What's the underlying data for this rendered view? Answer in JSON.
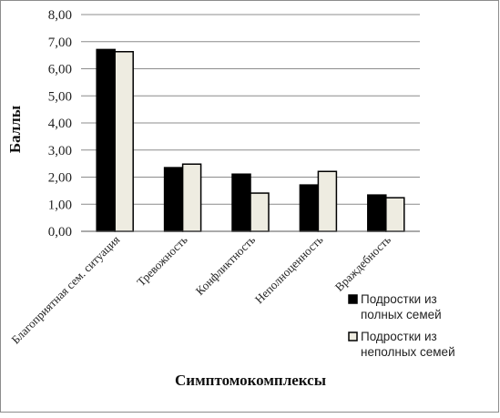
{
  "chart_data": {
    "type": "bar",
    "categories": [
      "Благоприятная сем. ситуация",
      "Тревожность",
      "Конфликтность",
      "Неполноценность",
      "Враждебность"
    ],
    "series": [
      {
        "name": "Подростки из полных семей",
        "color": "#000000",
        "values": [
          6.71,
          2.35,
          2.11,
          1.71,
          1.34
        ]
      },
      {
        "name": "Подростки из неполных семей",
        "color": "#eeece1",
        "values": [
          6.63,
          2.48,
          1.41,
          2.21,
          1.24
        ]
      }
    ],
    "title": "",
    "xlabel": "Симптомокомплексы",
    "ylabel": "Баллы",
    "ylim": [
      0,
      8
    ],
    "yticks": [
      "0,00",
      "1,00",
      "2,00",
      "3,00",
      "4,00",
      "5,00",
      "6,00",
      "7,00",
      "8,00"
    ],
    "grid": true,
    "legend_position": "right"
  }
}
